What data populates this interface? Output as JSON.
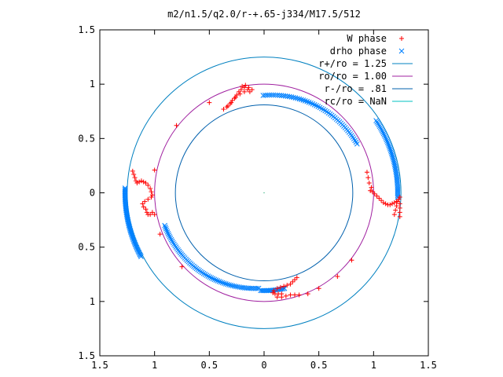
{
  "chart_data": {
    "type": "scatter",
    "title": "m2/n1.5/q2.0/r-+.65-j334/M17.5/512",
    "xlabel": "",
    "ylabel": "",
    "xlim": [
      -1.5,
      1.5
    ],
    "ylim": [
      -1.5,
      1.5
    ],
    "xtick_values": [
      -1.5,
      -1,
      -0.5,
      0,
      0.5,
      1,
      1.5
    ],
    "xtick_labels": [
      "1.5",
      "1",
      "0.5",
      "0",
      "0.5",
      "1",
      "1.5"
    ],
    "ytick_values": [
      1.5,
      1,
      0.5,
      0,
      -0.5,
      -1,
      -1.5
    ],
    "ytick_labels": [
      "1.5",
      "1",
      "0.5",
      "0",
      "0.5",
      "1",
      "1.5"
    ],
    "grid": false,
    "legend_position": "top-right",
    "colors": {
      "w_phase": "#ff0000",
      "drho_phase": "#0080ff",
      "r_plus": "#0080c0",
      "ro": "#a020a0",
      "r_minus": "#0060ad",
      "rc": "#00c0c0"
    },
    "series": [
      {
        "name": "W phase",
        "marker": "plus",
        "color": "#ff0000",
        "points": [
          [
            -0.13,
            0.93
          ],
          [
            -0.11,
            0.95
          ],
          [
            -0.15,
            0.95
          ],
          [
            -0.18,
            0.93
          ],
          [
            -0.22,
            0.91
          ],
          [
            -0.26,
            0.88
          ],
          [
            -0.29,
            0.85
          ],
          [
            -0.31,
            0.82
          ],
          [
            -0.34,
            0.79
          ],
          [
            -0.37,
            0.77
          ],
          [
            -0.33,
            0.8
          ],
          [
            -0.3,
            0.83
          ],
          [
            -0.27,
            0.87
          ],
          [
            -0.25,
            0.9
          ],
          [
            -0.23,
            0.93
          ],
          [
            -0.21,
            0.95
          ],
          [
            -0.18,
            0.97
          ],
          [
            -0.14,
            0.97
          ],
          [
            -0.17,
            0.99
          ],
          [
            -0.2,
            0.98
          ],
          [
            -0.5,
            0.83
          ],
          [
            -0.8,
            0.62
          ],
          [
            -1.0,
            0.21
          ],
          [
            -1.2,
            0.2
          ],
          [
            -1.19,
            0.17
          ],
          [
            -1.18,
            0.14
          ],
          [
            -1.17,
            0.11
          ],
          [
            -1.16,
            0.09
          ],
          [
            -1.14,
            0.1
          ],
          [
            -1.12,
            0.11
          ],
          [
            -1.1,
            0.1
          ],
          [
            -1.08,
            0.09
          ],
          [
            -1.06,
            0.07
          ],
          [
            -1.04,
            0.04
          ],
          [
            -1.03,
            0.01
          ],
          [
            -1.02,
            -0.02
          ],
          [
            -1.03,
            -0.04
          ],
          [
            -1.06,
            -0.06
          ],
          [
            -1.09,
            -0.08
          ],
          [
            -1.11,
            -0.1
          ],
          [
            -1.1,
            -0.13
          ],
          [
            -1.08,
            -0.15
          ],
          [
            -1.07,
            -0.18
          ],
          [
            -1.06,
            -0.2
          ],
          [
            -1.04,
            -0.2
          ],
          [
            -1.02,
            -0.18
          ],
          [
            -1.0,
            -0.2
          ],
          [
            -0.95,
            -0.38
          ],
          [
            -0.75,
            -0.68
          ],
          [
            0.97,
            0.02
          ],
          [
            0.99,
            0.01
          ],
          [
            1.01,
            -0.01
          ],
          [
            1.03,
            -0.03
          ],
          [
            1.05,
            -0.05
          ],
          [
            1.07,
            -0.07
          ],
          [
            1.09,
            -0.09
          ],
          [
            1.11,
            -0.1
          ],
          [
            1.13,
            -0.11
          ],
          [
            1.15,
            -0.11
          ],
          [
            1.17,
            -0.1
          ],
          [
            1.19,
            -0.09
          ],
          [
            1.21,
            -0.08
          ],
          [
            1.23,
            -0.06
          ],
          [
            1.24,
            -0.04
          ],
          [
            1.22,
            -0.08
          ],
          [
            1.21,
            -0.12
          ],
          [
            1.2,
            -0.16
          ],
          [
            1.19,
            -0.2
          ],
          [
            0.98,
            0.05
          ],
          [
            0.96,
            0.09
          ],
          [
            0.95,
            0.14
          ],
          [
            0.94,
            0.19
          ],
          [
            1.24,
            -0.1
          ],
          [
            1.24,
            -0.14
          ],
          [
            1.24,
            -0.18
          ],
          [
            1.24,
            -0.22
          ],
          [
            0.3,
            -0.78
          ],
          [
            0.28,
            -0.8
          ],
          [
            0.26,
            -0.82
          ],
          [
            0.24,
            -0.84
          ],
          [
            0.21,
            -0.85
          ],
          [
            0.18,
            -0.86
          ],
          [
            0.15,
            -0.87
          ],
          [
            0.12,
            -0.88
          ],
          [
            0.09,
            -0.9
          ],
          [
            0.08,
            -0.92
          ],
          [
            0.1,
            -0.93
          ],
          [
            0.13,
            -0.93
          ],
          [
            0.16,
            -0.93
          ],
          [
            0.12,
            -0.96
          ],
          [
            0.16,
            -0.96
          ],
          [
            0.2,
            -0.95
          ],
          [
            0.24,
            -0.94
          ],
          [
            0.28,
            -0.94
          ],
          [
            0.32,
            -0.94
          ],
          [
            0.4,
            -0.93
          ],
          [
            0.5,
            -0.88
          ],
          [
            0.67,
            -0.77
          ],
          [
            0.8,
            -0.62
          ]
        ]
      },
      {
        "name": "drho phase",
        "marker": "cross",
        "color": "#0080ff",
        "arcs": [
          {
            "center": [
              0.07,
              0.0
            ],
            "radius": 0.9,
            "theta_from_deg": 95,
            "theta_to_deg": 30,
            "count": 56
          },
          {
            "center": [
              0.0,
              0.0
            ],
            "radius": 1.22,
            "theta_from_deg": 33,
            "theta_to_deg": -2,
            "count": 50
          },
          {
            "center": [
              -0.02,
              0.0
            ],
            "radius": 1.25,
            "theta_from_deg": 178,
            "theta_to_deg": 208,
            "count": 58
          },
          {
            "center": [
              -0.08,
              0.0
            ],
            "radius": 0.88,
            "theta_from_deg": 200,
            "theta_to_deg": 272,
            "count": 70
          },
          {
            "center": [
              0.0,
              0.0
            ],
            "radius": 0.9,
            "theta_from_deg": 268,
            "theta_to_deg": 282,
            "count": 18
          }
        ]
      },
      {
        "name": "r+/ro = 1.25",
        "kind": "circle",
        "radius": 1.25,
        "color": "#0080c0"
      },
      {
        "name": "ro/ro = 1.00",
        "kind": "circle",
        "radius": 1.0,
        "color": "#a020a0"
      },
      {
        "name": "r-/ro = .81",
        "kind": "circle",
        "radius": 0.81,
        "color": "#0060ad"
      },
      {
        "name": "rc/ro = NaN",
        "kind": "circle",
        "radius": null,
        "color": "#00c0c0"
      }
    ]
  }
}
